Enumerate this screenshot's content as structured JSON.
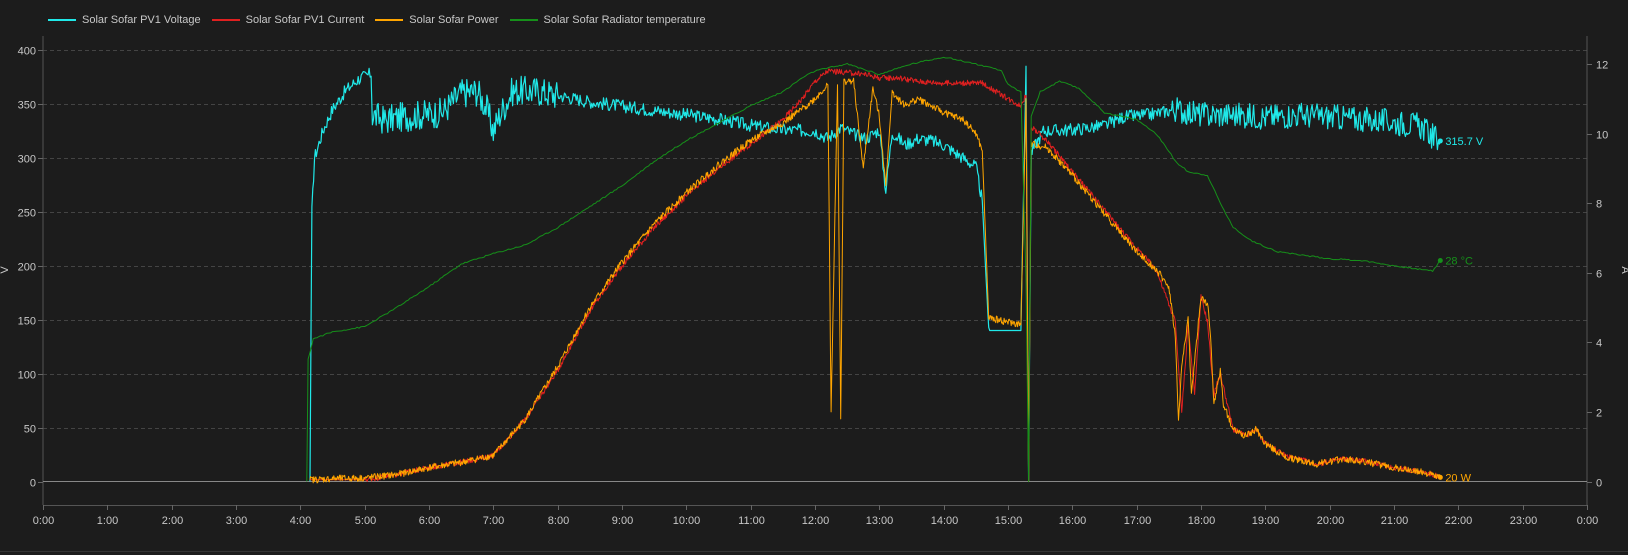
{
  "chart_data": {
    "type": "line",
    "legend_placement": "top-left",
    "grid": true,
    "x_axis": {
      "ticks": [
        "0:00",
        "1:00",
        "2:00",
        "3:00",
        "4:00",
        "5:00",
        "6:00",
        "7:00",
        "8:00",
        "9:00",
        "10:00",
        "11:00",
        "12:00",
        "13:00",
        "14:00",
        "15:00",
        "16:00",
        "17:00",
        "18:00",
        "19:00",
        "20:00",
        "21:00",
        "22:00",
        "23:00",
        "0:00"
      ],
      "range_hours": [
        0,
        24
      ]
    },
    "y_left": {
      "unit_label": "V",
      "ticks": [
        "0",
        "50",
        "100",
        "150",
        "200",
        "250",
        "300",
        "350",
        "400"
      ],
      "range": [
        0,
        400
      ]
    },
    "y_right": {
      "unit_label": "A",
      "ticks": [
        "0",
        "2",
        "4",
        "6",
        "8",
        "10",
        "12"
      ],
      "range": [
        0,
        12.4
      ]
    },
    "series": [
      {
        "name": "Solar Sofar PV1 Voltage",
        "color": "#20e8e8",
        "axis": "left",
        "end_label": "315.7 V",
        "points": [
          [
            4.15,
            0
          ],
          [
            4.18,
            250
          ],
          [
            4.22,
            300
          ],
          [
            4.35,
            325
          ],
          [
            4.5,
            345
          ],
          [
            4.7,
            362
          ],
          [
            4.9,
            373
          ],
          [
            5.1,
            378
          ],
          [
            5.12,
            340
          ],
          [
            5.3,
            335
          ],
          [
            5.6,
            338
          ],
          [
            5.9,
            340
          ],
          [
            6.2,
            342
          ],
          [
            6.5,
            360
          ],
          [
            6.75,
            362
          ],
          [
            6.9,
            345
          ],
          [
            7.0,
            325
          ],
          [
            7.1,
            340
          ],
          [
            7.3,
            362
          ],
          [
            7.7,
            362
          ],
          [
            8.0,
            358
          ],
          [
            8.5,
            352
          ],
          [
            9.0,
            348
          ],
          [
            9.5,
            344
          ],
          [
            10.0,
            340
          ],
          [
            10.5,
            336
          ],
          [
            11.0,
            330
          ],
          [
            11.5,
            326
          ],
          [
            12.0,
            325
          ],
          [
            12.2,
            318
          ],
          [
            12.4,
            328
          ],
          [
            12.6,
            322
          ],
          [
            12.8,
            318
          ],
          [
            13.0,
            326
          ],
          [
            13.1,
            270
          ],
          [
            13.2,
            324
          ],
          [
            13.4,
            312
          ],
          [
            13.6,
            318
          ],
          [
            13.8,
            316
          ],
          [
            14.0,
            312
          ],
          [
            14.3,
            300
          ],
          [
            14.5,
            292
          ],
          [
            14.6,
            260
          ],
          [
            14.7,
            140
          ],
          [
            15.2,
            140
          ],
          [
            15.28,
            385
          ],
          [
            15.32,
            0
          ],
          [
            15.36,
            305
          ],
          [
            15.55,
            325
          ],
          [
            16.0,
            326
          ],
          [
            16.5,
            330
          ],
          [
            16.8,
            338
          ],
          [
            17.2,
            340
          ],
          [
            17.6,
            345
          ],
          [
            18.0,
            340
          ],
          [
            18.5,
            340
          ],
          [
            19.0,
            338
          ],
          [
            19.5,
            340
          ],
          [
            20.0,
            338
          ],
          [
            20.5,
            336
          ],
          [
            21.0,
            333
          ],
          [
            21.4,
            330
          ],
          [
            21.6,
            320
          ],
          [
            21.72,
            315.7
          ]
        ]
      },
      {
        "name": "Solar Sofar PV1 Current",
        "color": "#e02020",
        "axis": "right",
        "end_label": "",
        "points": [
          [
            4.15,
            0.05
          ],
          [
            4.5,
            0.05
          ],
          [
            5.0,
            0.05
          ],
          [
            5.5,
            0.2
          ],
          [
            6.0,
            0.4
          ],
          [
            6.5,
            0.55
          ],
          [
            7.0,
            0.75
          ],
          [
            7.5,
            1.8
          ],
          [
            8.0,
            3.2
          ],
          [
            8.5,
            4.9
          ],
          [
            9.0,
            6.2
          ],
          [
            9.5,
            7.3
          ],
          [
            10.0,
            8.2
          ],
          [
            10.5,
            9.0
          ],
          [
            11.0,
            9.7
          ],
          [
            11.5,
            10.4
          ],
          [
            11.8,
            11.0
          ],
          [
            12.0,
            11.5
          ],
          [
            12.2,
            11.8
          ],
          [
            12.5,
            11.75
          ],
          [
            12.8,
            11.7
          ],
          [
            13.0,
            11.6
          ],
          [
            13.3,
            11.6
          ],
          [
            13.6,
            11.5
          ],
          [
            14.0,
            11.45
          ],
          [
            14.6,
            11.45
          ],
          [
            15.0,
            11.0
          ],
          [
            15.2,
            10.8
          ],
          [
            15.28,
            11.1
          ],
          [
            15.32,
            0
          ],
          [
            15.36,
            10.2
          ],
          [
            15.6,
            9.8
          ],
          [
            16.0,
            8.9
          ],
          [
            16.5,
            7.8
          ],
          [
            17.0,
            6.7
          ],
          [
            17.3,
            6.1
          ],
          [
            17.6,
            4.6
          ],
          [
            17.7,
            2.0
          ],
          [
            17.8,
            4.5
          ],
          [
            17.9,
            2.5
          ],
          [
            18.0,
            5.3
          ],
          [
            18.1,
            4.6
          ],
          [
            18.2,
            2.5
          ],
          [
            18.3,
            3.1
          ],
          [
            18.4,
            2.3
          ],
          [
            18.5,
            1.5
          ],
          [
            18.7,
            1.3
          ],
          [
            18.85,
            1.5
          ],
          [
            19.0,
            1.1
          ],
          [
            19.3,
            0.75
          ],
          [
            19.8,
            0.5
          ],
          [
            20.2,
            0.65
          ],
          [
            20.5,
            0.6
          ],
          [
            21.0,
            0.4
          ],
          [
            21.5,
            0.25
          ],
          [
            21.72,
            0.12
          ]
        ]
      },
      {
        "name": "Solar Sofar Power",
        "color": "#ffa500",
        "axis": "right",
        "end_label": "20 W",
        "points": [
          [
            4.15,
            0.05
          ],
          [
            4.5,
            0.08
          ],
          [
            5.0,
            0.1
          ],
          [
            5.5,
            0.2
          ],
          [
            6.0,
            0.4
          ],
          [
            6.5,
            0.55
          ],
          [
            7.0,
            0.75
          ],
          [
            7.5,
            1.8
          ],
          [
            8.0,
            3.3
          ],
          [
            8.5,
            5.0
          ],
          [
            9.0,
            6.3
          ],
          [
            9.5,
            7.4
          ],
          [
            10.0,
            8.3
          ],
          [
            10.5,
            9.1
          ],
          [
            11.0,
            9.8
          ],
          [
            11.5,
            10.3
          ],
          [
            11.8,
            10.7
          ],
          [
            12.0,
            11.0
          ],
          [
            12.2,
            11.4
          ],
          [
            12.25,
            2.0
          ],
          [
            12.35,
            11.4
          ],
          [
            12.4,
            1.8
          ],
          [
            12.45,
            11.5
          ],
          [
            12.6,
            11.5
          ],
          [
            12.75,
            9.0
          ],
          [
            12.9,
            11.3
          ],
          [
            13.0,
            10.5
          ],
          [
            13.1,
            8.5
          ],
          [
            13.2,
            11.2
          ],
          [
            13.4,
            10.8
          ],
          [
            13.6,
            11.0
          ],
          [
            13.8,
            10.8
          ],
          [
            14.0,
            10.6
          ],
          [
            14.3,
            10.4
          ],
          [
            14.5,
            10.0
          ],
          [
            14.6,
            9.5
          ],
          [
            14.7,
            4.7
          ],
          [
            15.2,
            4.5
          ],
          [
            15.28,
            11.0
          ],
          [
            15.32,
            0
          ],
          [
            15.36,
            9.7
          ],
          [
            15.6,
            9.6
          ],
          [
            16.0,
            8.8
          ],
          [
            16.5,
            7.7
          ],
          [
            17.0,
            6.6
          ],
          [
            17.3,
            6.1
          ],
          [
            17.5,
            5.6
          ],
          [
            17.6,
            4.2
          ],
          [
            17.65,
            1.7
          ],
          [
            17.7,
            3.3
          ],
          [
            17.8,
            4.7
          ],
          [
            17.85,
            2.5
          ],
          [
            18.0,
            5.3
          ],
          [
            18.1,
            5.1
          ],
          [
            18.15,
            4.2
          ],
          [
            18.2,
            2.2
          ],
          [
            18.3,
            3.2
          ],
          [
            18.35,
            2.2
          ],
          [
            18.5,
            1.5
          ],
          [
            18.7,
            1.3
          ],
          [
            18.85,
            1.5
          ],
          [
            19.0,
            1.1
          ],
          [
            19.3,
            0.7
          ],
          [
            19.8,
            0.5
          ],
          [
            20.2,
            0.65
          ],
          [
            20.5,
            0.58
          ],
          [
            21.0,
            0.4
          ],
          [
            21.5,
            0.25
          ],
          [
            21.72,
            0.12
          ]
        ]
      },
      {
        "name": "Solar Sofar Radiator temperature",
        "color": "#16901a",
        "axis": "right",
        "end_label": "28 °C",
        "points": [
          [
            4.1,
            0
          ],
          [
            4.12,
            3.5
          ],
          [
            4.2,
            4.1
          ],
          [
            4.5,
            4.3
          ],
          [
            5.0,
            4.45
          ],
          [
            5.5,
            5.0
          ],
          [
            6.0,
            5.6
          ],
          [
            6.5,
            6.25
          ],
          [
            7.0,
            6.55
          ],
          [
            7.5,
            6.8
          ],
          [
            8.0,
            7.3
          ],
          [
            8.5,
            7.9
          ],
          [
            9.0,
            8.5
          ],
          [
            9.5,
            9.2
          ],
          [
            10.0,
            9.8
          ],
          [
            10.5,
            10.3
          ],
          [
            11.0,
            10.8
          ],
          [
            11.5,
            11.2
          ],
          [
            11.8,
            11.6
          ],
          [
            12.0,
            11.8
          ],
          [
            12.5,
            12.0
          ],
          [
            13.0,
            11.7
          ],
          [
            13.5,
            12.0
          ],
          [
            14.0,
            12.2
          ],
          [
            14.5,
            12.0
          ],
          [
            14.9,
            11.8
          ],
          [
            15.0,
            11.4
          ],
          [
            15.2,
            11.2
          ],
          [
            15.28,
            5.8
          ],
          [
            15.32,
            0
          ],
          [
            15.36,
            10.5
          ],
          [
            15.5,
            11.2
          ],
          [
            15.8,
            11.5
          ],
          [
            16.1,
            11.3
          ],
          [
            16.5,
            10.6
          ],
          [
            17.0,
            10.4
          ],
          [
            17.3,
            10.0
          ],
          [
            17.5,
            9.5
          ],
          [
            17.6,
            9.2
          ],
          [
            17.8,
            8.9
          ],
          [
            18.1,
            8.8
          ],
          [
            18.3,
            8.0
          ],
          [
            18.5,
            7.3
          ],
          [
            18.8,
            6.9
          ],
          [
            19.2,
            6.6
          ],
          [
            19.6,
            6.5
          ],
          [
            20.0,
            6.4
          ],
          [
            20.5,
            6.35
          ],
          [
            21.0,
            6.2
          ],
          [
            21.4,
            6.1
          ],
          [
            21.6,
            6.05
          ],
          [
            21.72,
            6.35
          ]
        ]
      }
    ]
  }
}
